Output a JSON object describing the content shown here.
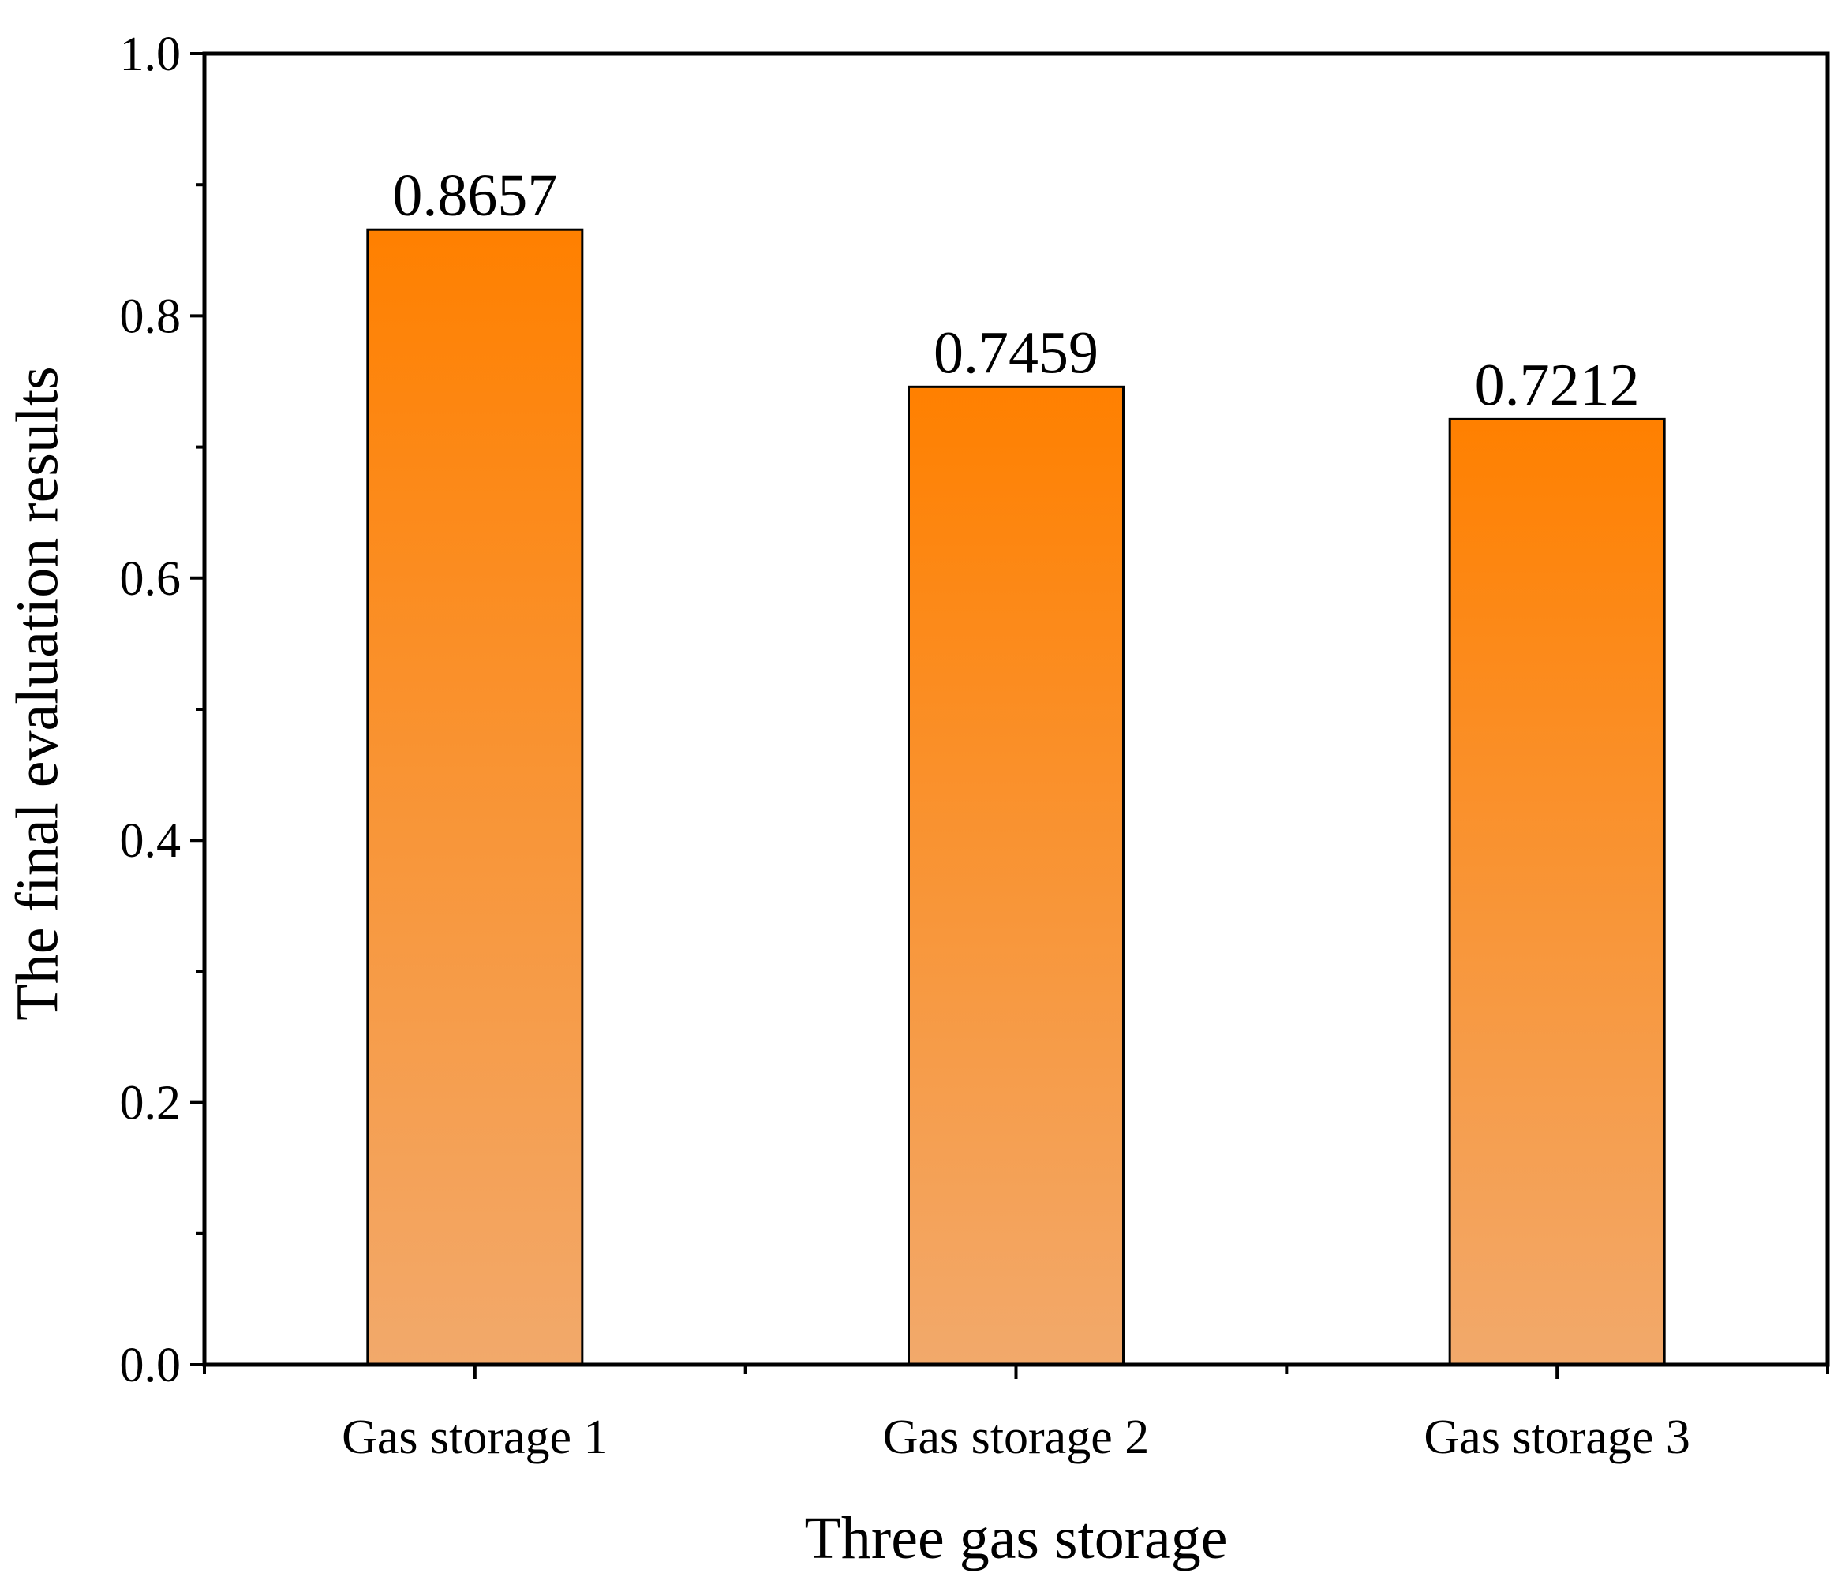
{
  "chart_data": {
    "type": "bar",
    "categories": [
      "Gas storage 1",
      "Gas storage 2",
      "Gas storage 3"
    ],
    "values": [
      0.8657,
      0.7459,
      0.7212
    ],
    "data_labels": [
      "0.8657",
      "0.7459",
      "0.7212"
    ],
    "xlabel": "Three gas storage",
    "ylabel": "The final evaluation results",
    "ylim": [
      0,
      1.0
    ],
    "yticks": [
      0.0,
      0.2,
      0.4,
      0.6,
      0.8,
      1.0
    ],
    "ytick_labels": [
      "0.0",
      "0.2",
      "0.4",
      "0.6",
      "0.8",
      "1.0"
    ],
    "grid": false,
    "bar_color_top": "#ff8000",
    "bar_color_bottom": "#f2a96b",
    "bar_edge_color": "#000000"
  }
}
